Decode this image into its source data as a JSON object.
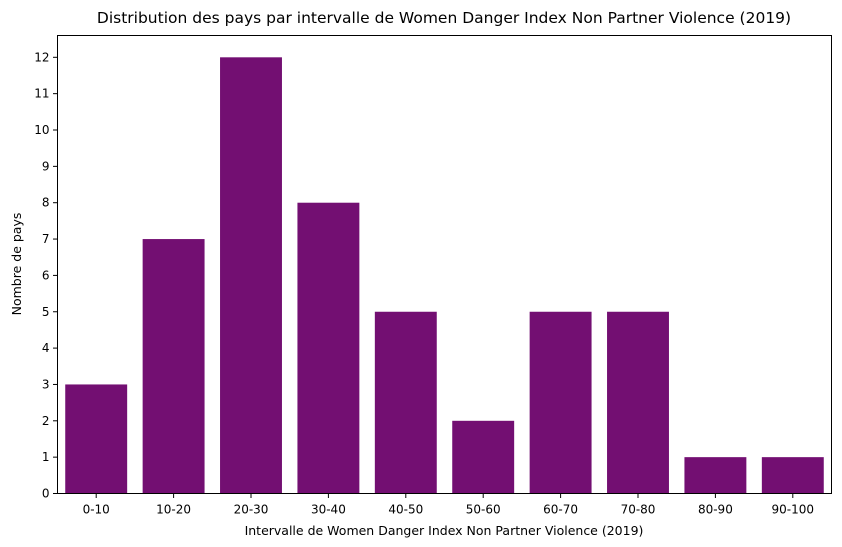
{
  "chart_data": {
    "type": "bar",
    "title": "Distribution des pays par intervalle de Women Danger Index Non Partner Violence  (2019)",
    "xlabel": "Intervalle de Women Danger Index Non Partner Violence (2019)",
    "ylabel": "Nombre de pays",
    "categories": [
      "0-10",
      "10-20",
      "20-30",
      "30-40",
      "40-50",
      "50-60",
      "60-70",
      "70-80",
      "80-90",
      "90-100"
    ],
    "values": [
      3,
      7,
      12,
      8,
      5,
      2,
      5,
      5,
      1,
      1
    ],
    "ylim": [
      0,
      12.6
    ],
    "yticks": [
      0,
      1,
      2,
      3,
      4,
      5,
      6,
      7,
      8,
      9,
      10,
      11,
      12
    ],
    "bar_color": "#730f72",
    "grid": false,
    "legend": "none"
  }
}
